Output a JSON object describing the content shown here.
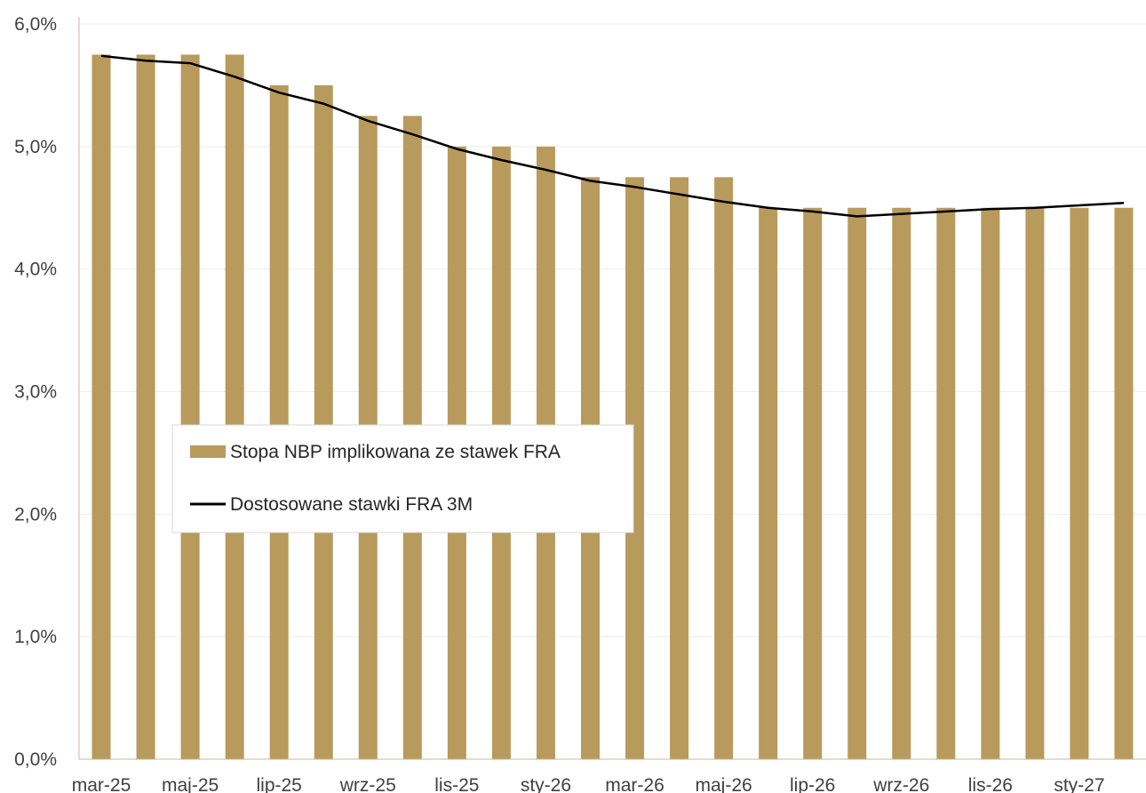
{
  "chart_data": {
    "type": "bar",
    "categories": [
      "mar-25",
      "kwi-25",
      "maj-25",
      "cze-25",
      "lip-25",
      "sie-25",
      "wrz-25",
      "paź-25",
      "lis-25",
      "gru-25",
      "sty-26",
      "lut-26",
      "mar-26",
      "kwi-26",
      "maj-26",
      "cze-26",
      "lip-26",
      "sie-26",
      "wrz-26",
      "paź-26",
      "lis-26",
      "gru-26",
      "sty-27",
      "lut-27"
    ],
    "visible_tick_labels": [
      "mar-25",
      "maj-25",
      "lip-25",
      "wrz-25",
      "lis-25",
      "sty-26",
      "mar-26",
      "maj-26",
      "lip-26",
      "wrz-26",
      "lis-26",
      "sty-27"
    ],
    "series": [
      {
        "name": "Stopa NBP implikowana ze stawek FRA",
        "type": "bar",
        "color": "#b89a5c",
        "values": [
          5.75,
          5.75,
          5.75,
          5.75,
          5.5,
          5.5,
          5.25,
          5.25,
          5.0,
          5.0,
          5.0,
          4.75,
          4.75,
          4.75,
          4.75,
          4.5,
          4.5,
          4.5,
          4.5,
          4.5,
          4.5,
          4.5,
          4.5,
          4.5
        ]
      },
      {
        "name": "Dostosowane stawki FRA 3M",
        "type": "line",
        "color": "#000000",
        "values": [
          5.74,
          5.7,
          5.68,
          5.57,
          5.44,
          5.35,
          5.21,
          5.1,
          4.98,
          4.89,
          4.81,
          4.72,
          4.67,
          4.61,
          4.55,
          4.5,
          4.47,
          4.43,
          4.45,
          4.47,
          4.49,
          4.5,
          4.52,
          4.54
        ]
      }
    ],
    "y_ticks": [
      "0,0%",
      "1,0%",
      "2,0%",
      "3,0%",
      "4,0%",
      "5,0%",
      "6,0%"
    ],
    "ylim": [
      0,
      6
    ],
    "grid": true,
    "legend_position": "center-left",
    "title": "",
    "xlabel": "",
    "ylabel": ""
  }
}
